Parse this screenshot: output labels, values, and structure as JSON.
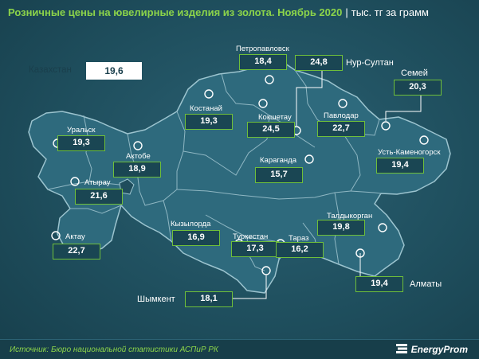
{
  "title": "Розничные цены на ювелирные изделия из золота. Ноябрь 2020",
  "unit": "тыс. тг за грамм",
  "separator": "|",
  "country": {
    "name": "Казахстан",
    "value": "19,6"
  },
  "regions": [
    {
      "id": "petropavlovsk",
      "name": "Петропавловск",
      "value": "18,4"
    },
    {
      "id": "nur-sultan",
      "name": "Нур-Султан",
      "value": "24,8"
    },
    {
      "id": "semey",
      "name": "Семей",
      "value": "20,3"
    },
    {
      "id": "kostanay",
      "name": "Костанай",
      "value": "19,3"
    },
    {
      "id": "kokshetau",
      "name": "Кокшетау",
      "value": "24,5"
    },
    {
      "id": "pavlodar",
      "name": "Павлодар",
      "value": "22,7"
    },
    {
      "id": "uralsk",
      "name": "Уральск",
      "value": "19,3"
    },
    {
      "id": "aktobe",
      "name": "Актобе",
      "value": "18,9"
    },
    {
      "id": "ust-kamenogorsk",
      "name": "Усть-Каменогорск",
      "value": "19,4"
    },
    {
      "id": "karaganda",
      "name": "Караганда",
      "value": "15,7"
    },
    {
      "id": "atyrau",
      "name": "Атырау",
      "value": "21,6"
    },
    {
      "id": "taldykorgan",
      "name": "Талдыкорган",
      "value": "19,8"
    },
    {
      "id": "kyzylorda",
      "name": "Кызылорда",
      "value": "16,9"
    },
    {
      "id": "turkestan",
      "name": "Туркестан",
      "value": "17,3"
    },
    {
      "id": "taraz",
      "name": "Тараз",
      "value": "16,2"
    },
    {
      "id": "aktau",
      "name": "Актау",
      "value": "22,7"
    },
    {
      "id": "almaty",
      "name": "Алматы",
      "value": "19,4"
    },
    {
      "id": "shymkent",
      "name": "Шымкент",
      "value": "18,1"
    }
  ],
  "source": "Источник: Бюро национальной  статистики АСПиР РК",
  "brand": "EnergyProm",
  "colors": {
    "accent": "#8cd44a",
    "box_border": "#6fbf3a",
    "background": "#1f4d5c",
    "land": "#2e6a7d",
    "border": "#8fb7c3"
  }
}
